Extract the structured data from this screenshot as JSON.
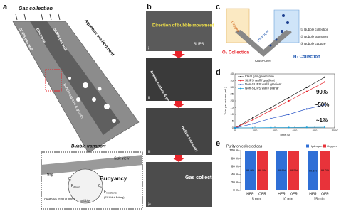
{
  "panel_a": {
    "label": "a",
    "gas_collection": "Gas collection",
    "aqueous_top": "Aqueous environment",
    "wall_left": "SLIPS gas wall",
    "electrode": "Electrode",
    "wall_right": "SLIPS gas wall",
    "capture": "Bubble capture & growth",
    "transport": "Bubble transport",
    "side_view": "Side view",
    "buoyancy": "Buoyancy",
    "slip": "Slip",
    "f": "F",
    "driven": "driven",
    "resistance": "resistance",
    "resistance_terms": "(FCAH + Fdrag)",
    "theta": "θ",
    "r": "r",
    "a": "a",
    "aqueous_bottom": "Aqueous environment",
    "bubble": "Bubble"
  },
  "panel_b": {
    "label": "b",
    "direction": "Direction of bubble movement",
    "slips": "SLIPS",
    "steps": [
      "i",
      "ii",
      "iii",
      "iv"
    ],
    "capture": "Bubble capture & growth",
    "transport": "Bubble transport",
    "collection": "Gas collection"
  },
  "panel_c": {
    "label": "c",
    "oxygen": "Oxygen",
    "hydrogen": "Hydrogen",
    "step1": "① Bubble collection",
    "step2": "② Bubble transport",
    "step3": "③ Bubble capture",
    "o2": "O₂ Collection",
    "h2": "H₂ Collection",
    "crossover": "Cross-over"
  },
  "chart_data": [
    {
      "type": "line",
      "label": "d",
      "xlabel": "Time (s)",
      "ylabel": "Total gas volume (mL)",
      "x": [
        0,
        180,
        360,
        540,
        720,
        900
      ],
      "xlim": [
        0,
        1000
      ],
      "xticks": [
        0,
        200,
        400,
        600,
        800,
        1000
      ],
      "ylim": [
        0,
        40
      ],
      "yticks": [
        0,
        5,
        10,
        15,
        20,
        25,
        30,
        35,
        40
      ],
      "series": [
        {
          "name": "Ideal gas generation",
          "color": "#111111",
          "values": [
            0,
            7.5,
            15,
            22.5,
            30,
            37.5
          ]
        },
        {
          "name": "SLIPS wall / gradient",
          "color": "#e8232a",
          "values": [
            0,
            6,
            13,
            20,
            27,
            34
          ]
        },
        {
          "name": "Non-SLIPS wall / gradient",
          "color": "#2f59c8",
          "values": [
            0,
            3,
            7,
            10,
            14,
            17
          ]
        },
        {
          "name": "Non-SLIPS wall / planar",
          "color": "#1aa0d8",
          "values": [
            0,
            0.1,
            0.2,
            0.3,
            0.4,
            0.5
          ]
        }
      ],
      "annotations": [
        {
          "text": "90%",
          "color": "#e8232a"
        },
        {
          "text": "~50%",
          "color": "#2f59c8"
        },
        {
          "text": "~1%",
          "color": "#1aa0d8"
        }
      ]
    },
    {
      "type": "stacked-bar",
      "label": "e",
      "title": "Purity on collected gas",
      "categories": [
        "HER",
        "OER",
        "HER",
        "OER",
        "HER",
        "OER"
      ],
      "groups": [
        "5 min",
        "10 min",
        "15 min"
      ],
      "ylim": [
        0,
        100
      ],
      "yticks": [
        {
          "value": 0,
          "label": "0 %"
        },
        {
          "value": 20,
          "label": "20 %"
        },
        {
          "value": 40,
          "label": "40 %"
        },
        {
          "value": 60,
          "label": "60 %"
        },
        {
          "value": 80,
          "label": "80 %"
        },
        {
          "value": 100,
          "label": "100 %"
        }
      ],
      "series": [
        {
          "name": "Hydrogen",
          "color": "#2f6fd6",
          "values": [
            99.9,
            0.5,
            99.8,
            0.5,
            99.1,
            0.8
          ],
          "value_labels": [
            "99.9%",
            null,
            "99.8%",
            null,
            "99.1%",
            null
          ]
        },
        {
          "name": "Oxygen",
          "color": "#e8333a",
          "values": [
            0.1,
            99.5,
            0.2,
            99.5,
            0.9,
            99.2
          ],
          "value_labels": [
            null,
            "99.5%",
            null,
            "99.5%",
            null,
            "99.2%"
          ]
        }
      ]
    }
  ]
}
